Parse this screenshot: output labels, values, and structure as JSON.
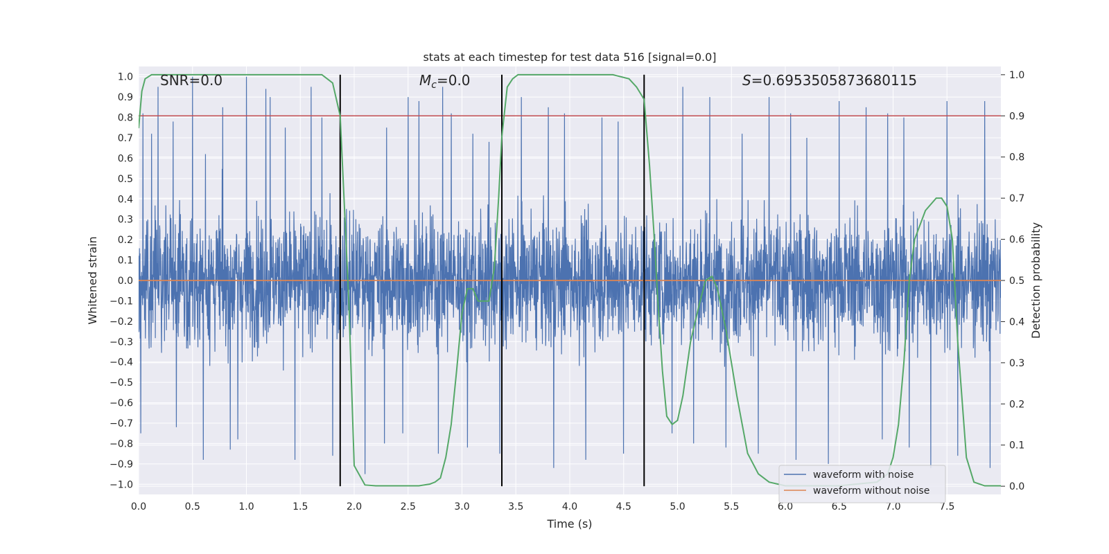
{
  "chart_data": {
    "type": "line",
    "title": "stats at each timestep for test data 516 [signal=0.0]",
    "xlabel": "Time (s)",
    "ylabel": "Whitened strain",
    "y2label": "Detection probability",
    "xlim": [
      0.0,
      8.0
    ],
    "ylim": [
      -1.05,
      1.05
    ],
    "y2lim": [
      -0.02,
      1.02
    ],
    "xticks": [
      0.0,
      0.5,
      1.0,
      1.5,
      2.0,
      2.5,
      3.0,
      3.5,
      4.0,
      4.5,
      5.0,
      5.5,
      6.0,
      6.5,
      7.0,
      7.5
    ],
    "xtick_labels": [
      "0.0",
      "0.5",
      "1.0",
      "1.5",
      "2.0",
      "2.5",
      "3.0",
      "3.5",
      "4.0",
      "4.5",
      "5.0",
      "5.5",
      "6.0",
      "6.5",
      "7.0",
      "7.5"
    ],
    "yticks": [
      -1.0,
      -0.9,
      -0.8,
      -0.7,
      -0.6,
      -0.5,
      -0.4,
      -0.3,
      -0.2,
      -0.1,
      0.0,
      0.1,
      0.2,
      0.3,
      0.4,
      0.5,
      0.6,
      0.7,
      0.8,
      0.9,
      1.0
    ],
    "ytick_labels": [
      "−1.0",
      "−0.9",
      "−0.8",
      "−0.7",
      "−0.6",
      "−0.5",
      "−0.4",
      "−0.3",
      "−0.2",
      "−0.1",
      "0.0",
      "0.1",
      "0.2",
      "0.3",
      "0.4",
      "0.5",
      "0.6",
      "0.7",
      "0.8",
      "0.9",
      "1.0"
    ],
    "y2ticks": [
      0.0,
      0.1,
      0.2,
      0.3,
      0.4,
      0.5,
      0.6,
      0.7,
      0.8,
      0.9,
      1.0
    ],
    "y2tick_labels": [
      "0.0",
      "0.1",
      "0.2",
      "0.3",
      "0.4",
      "0.5",
      "0.6",
      "0.7",
      "0.8",
      "0.9",
      "1.0"
    ],
    "annotations": {
      "snr": "SNR=0.0",
      "mc_symbol": "M",
      "mc_sub": "c",
      "mc_value": "=0.0",
      "s_symbol": "S",
      "s_value": "=0.6953505873680115"
    },
    "threshold": {
      "value": 0.9,
      "axis": "right",
      "color": "#c44e52"
    },
    "vertical_lines": [
      1.87,
      3.37,
      4.69
    ],
    "series": [
      {
        "name": "waveform with noise",
        "color": "#4c72b0",
        "axis": "left",
        "description_values": "dense noise, |y| mostly < 0.45, spikes up to ~1.0",
        "spikes_x": [
          0.04,
          0.12,
          0.18,
          0.32,
          0.5,
          0.62,
          0.78,
          1.0,
          1.18,
          1.22,
          1.36,
          1.6,
          1.7,
          1.8,
          2.3,
          2.5,
          2.6,
          2.82,
          2.9,
          3.1,
          3.25,
          3.55,
          3.8,
          3.95,
          4.3,
          4.45,
          5.05,
          5.3,
          5.6,
          5.85,
          6.05,
          6.2,
          6.5,
          6.75,
          6.95,
          7.1,
          7.35,
          7.5,
          7.85
        ],
        "spikes_y": [
          0.82,
          0.72,
          0.95,
          0.78,
          1.0,
          0.62,
          0.85,
          1.0,
          0.94,
          0.9,
          0.75,
          0.95,
          0.8,
          0.8,
          0.75,
          0.9,
          0.88,
          0.95,
          0.82,
          0.72,
          0.68,
          0.9,
          0.85,
          0.82,
          0.8,
          0.78,
          0.95,
          0.9,
          0.72,
          0.9,
          0.82,
          0.7,
          0.88,
          0.85,
          0.82,
          0.8,
          0.92,
          0.88,
          0.88
        ],
        "neg_spikes_x": [
          0.02,
          0.35,
          0.6,
          0.85,
          0.92,
          1.45,
          1.8,
          2.1,
          2.28,
          2.45,
          2.78,
          3.05,
          3.35,
          3.85,
          4.15,
          4.5,
          4.95,
          5.15,
          5.45,
          5.75,
          6.1,
          6.4,
          6.9,
          7.15,
          7.35,
          7.6,
          7.9
        ],
        "neg_spikes_y": [
          -0.75,
          -0.72,
          -0.88,
          -0.83,
          -0.78,
          -0.88,
          -0.86,
          -0.95,
          -0.8,
          -0.75,
          -0.85,
          -0.82,
          -0.85,
          -0.92,
          -0.88,
          -0.85,
          -0.75,
          -0.8,
          -0.82,
          -0.85,
          -0.88,
          -0.9,
          -0.78,
          -0.82,
          -0.92,
          -0.86,
          -0.92
        ]
      },
      {
        "name": "waveform without noise",
        "color": "#dd8452",
        "axis": "left",
        "x": [
          0.0,
          8.0
        ],
        "values": [
          0.0,
          0.0
        ]
      },
      {
        "name": "detection probability",
        "color": "#55a868",
        "axis": "right",
        "x": [
          0.0,
          0.03,
          0.06,
          0.12,
          0.25,
          0.5,
          1.0,
          1.5,
          1.7,
          1.75,
          1.8,
          1.87,
          1.95,
          2.0,
          2.1,
          2.2,
          2.4,
          2.6,
          2.7,
          2.75,
          2.8,
          2.85,
          2.9,
          2.95,
          3.0,
          3.05,
          3.1,
          3.15,
          3.2,
          3.25,
          3.3,
          3.34,
          3.37,
          3.42,
          3.47,
          3.52,
          3.6,
          4.0,
          4.4,
          4.55,
          4.62,
          4.69,
          4.74,
          4.78,
          4.82,
          4.86,
          4.9,
          4.95,
          5.0,
          5.05,
          5.12,
          5.2,
          5.26,
          5.32,
          5.37,
          5.45,
          5.55,
          5.65,
          5.75,
          5.85,
          6.0,
          6.5,
          6.85,
          6.95,
          7.0,
          7.05,
          7.1,
          7.15,
          7.2,
          7.3,
          7.4,
          7.45,
          7.5,
          7.55,
          7.6,
          7.68,
          7.75,
          7.85,
          8.0
        ],
        "values": [
          0.87,
          0.96,
          0.99,
          1.0,
          1.0,
          1.0,
          1.0,
          1.0,
          1.0,
          0.99,
          0.98,
          0.9,
          0.45,
          0.05,
          0.003,
          0.001,
          0.001,
          0.001,
          0.005,
          0.01,
          0.02,
          0.07,
          0.15,
          0.28,
          0.42,
          0.48,
          0.48,
          0.45,
          0.45,
          0.45,
          0.53,
          0.7,
          0.85,
          0.97,
          0.99,
          1.0,
          1.0,
          1.0,
          1.0,
          0.99,
          0.97,
          0.94,
          0.78,
          0.62,
          0.44,
          0.28,
          0.17,
          0.15,
          0.16,
          0.22,
          0.35,
          0.44,
          0.5,
          0.51,
          0.48,
          0.38,
          0.22,
          0.08,
          0.03,
          0.01,
          0.001,
          0.001,
          0.01,
          0.03,
          0.07,
          0.15,
          0.3,
          0.5,
          0.6,
          0.67,
          0.7,
          0.7,
          0.68,
          0.6,
          0.35,
          0.07,
          0.01,
          0.001,
          0.001
        ]
      }
    ],
    "legend": {
      "placement": "lower-right",
      "items": [
        {
          "label": "waveform with noise",
          "color": "#4c72b0"
        },
        {
          "label": "waveform without noise",
          "color": "#dd8452"
        }
      ]
    }
  }
}
